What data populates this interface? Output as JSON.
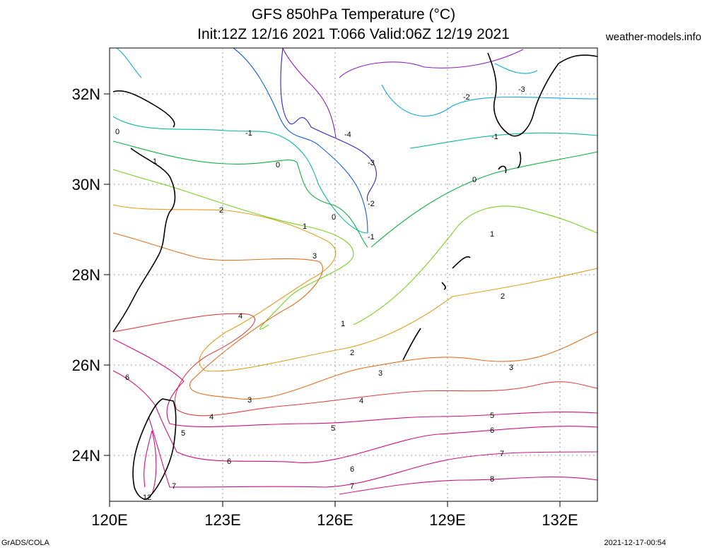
{
  "header": {
    "title_line1": "GFS 850hPa Temperature (°C)",
    "title_line2": "Init:12Z 12/16 2021 T:066 Valid:06Z 12/19 2021",
    "site": "weather-models.info"
  },
  "footer": {
    "left": "GrADS/COLA",
    "right": "2021-12-17-00:54"
  },
  "axes": {
    "lat_labels": [
      "32N",
      "30N",
      "28N",
      "26N",
      "24N"
    ],
    "lon_labels": [
      "120E",
      "123E",
      "126E",
      "129E",
      "132E"
    ]
  },
  "colors": {
    "m4": "#3020c8",
    "m3": "#1060e0",
    "m2": "#10a8d8",
    "m1": "#10b8a0",
    "t0": "#10b040",
    "t1": "#78d020",
    "t2": "#e0a020",
    "t3": "#e07020",
    "t4": "#e04040",
    "t5": "#d01080",
    "t6": "#d01080",
    "t7": "#d01080",
    "t8": "#d01080",
    "purple": "#9020c0",
    "coast": "#000000"
  },
  "contour_labels": [
    {
      "text": "-4"
    },
    {
      "text": "-3"
    },
    {
      "text": "-3"
    },
    {
      "text": "-2"
    },
    {
      "text": "-2"
    },
    {
      "text": "-1"
    },
    {
      "text": "-1"
    },
    {
      "text": "-1"
    },
    {
      "text": "0"
    },
    {
      "text": "0"
    },
    {
      "text": "0"
    },
    {
      "text": "0"
    },
    {
      "text": "1"
    },
    {
      "text": "1"
    },
    {
      "text": "1"
    },
    {
      "text": "1"
    },
    {
      "text": "2"
    },
    {
      "text": "2"
    },
    {
      "text": "2"
    },
    {
      "text": "3"
    },
    {
      "text": "3"
    },
    {
      "text": "3"
    },
    {
      "text": "3"
    },
    {
      "text": "4"
    },
    {
      "text": "4"
    },
    {
      "text": "4"
    },
    {
      "text": "5"
    },
    {
      "text": "5"
    },
    {
      "text": "5"
    },
    {
      "text": "6"
    },
    {
      "text": "6"
    },
    {
      "text": "6"
    },
    {
      "text": "6"
    },
    {
      "text": "7"
    },
    {
      "text": "7"
    },
    {
      "text": "7"
    },
    {
      "text": "8"
    },
    {
      "text": "12"
    }
  ]
}
